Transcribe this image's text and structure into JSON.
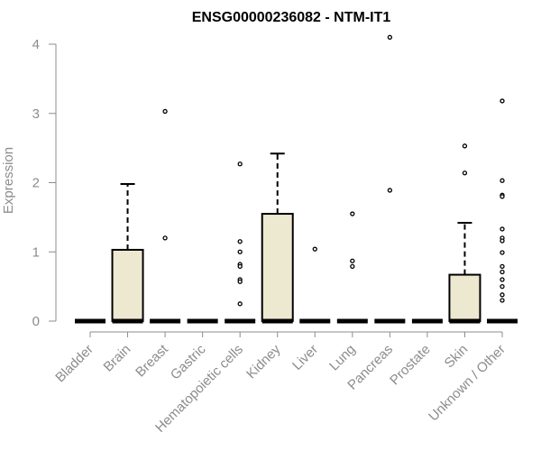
{
  "chart_data": {
    "type": "box",
    "title": "ENSG00000236082 - NTM-IT1",
    "xlabel": "",
    "ylabel": "Expression",
    "ylim": [
      0,
      4.1
    ],
    "yticks": [
      0,
      1,
      2,
      3,
      4
    ],
    "categories": [
      "Bladder",
      "Brain",
      "Breast",
      "Gastric",
      "Hematopoietic cells",
      "Kidney",
      "Liver",
      "Lung",
      "Pancreas",
      "Prostate",
      "Skin",
      "Unknown / Other"
    ],
    "boxes": [
      {
        "category": "Bladder",
        "q1": 0,
        "median": 0,
        "q3": 0,
        "whisker_low": 0,
        "whisker_high": 0,
        "outliers": []
      },
      {
        "category": "Brain",
        "q1": 0,
        "median": 0,
        "q3": 1.03,
        "whisker_low": 0,
        "whisker_high": 1.98,
        "outliers": []
      },
      {
        "category": "Breast",
        "q1": 0,
        "median": 0,
        "q3": 0,
        "whisker_low": 0,
        "whisker_high": 0,
        "outliers": [
          3.03,
          1.2
        ]
      },
      {
        "category": "Gastric",
        "q1": 0,
        "median": 0,
        "q3": 0,
        "whisker_low": 0,
        "whisker_high": 0,
        "outliers": []
      },
      {
        "category": "Hematopoietic cells",
        "q1": 0,
        "median": 0,
        "q3": 0,
        "whisker_low": 0,
        "whisker_high": 0,
        "outliers": [
          2.27,
          1.15,
          1.0,
          0.82,
          0.79,
          0.6,
          0.57,
          0.25
        ]
      },
      {
        "category": "Kidney",
        "q1": 0,
        "median": 0,
        "q3": 1.55,
        "whisker_low": 0,
        "whisker_high": 2.42,
        "outliers": []
      },
      {
        "category": "Liver",
        "q1": 0,
        "median": 0,
        "q3": 0,
        "whisker_low": 0,
        "whisker_high": 0,
        "outliers": [
          1.04
        ]
      },
      {
        "category": "Lung",
        "q1": 0,
        "median": 0,
        "q3": 0,
        "whisker_low": 0,
        "whisker_high": 0,
        "outliers": [
          1.55,
          0.87,
          0.79
        ]
      },
      {
        "category": "Pancreas",
        "q1": 0,
        "median": 0,
        "q3": 0,
        "whisker_low": 0,
        "whisker_high": 0,
        "outliers": [
          4.1,
          1.89
        ]
      },
      {
        "category": "Prostate",
        "q1": 0,
        "median": 0,
        "q3": 0,
        "whisker_low": 0,
        "whisker_high": 0,
        "outliers": []
      },
      {
        "category": "Skin",
        "q1": 0,
        "median": 0,
        "q3": 0.67,
        "whisker_low": 0,
        "whisker_high": 1.42,
        "outliers": [
          2.53,
          2.14
        ]
      },
      {
        "category": "Unknown / Other",
        "q1": 0,
        "median": 0,
        "q3": 0,
        "whisker_low": 0,
        "whisker_high": 0,
        "outliers": [
          3.18,
          2.03,
          1.82,
          1.8,
          1.33,
          1.2,
          1.16,
          0.99,
          0.79,
          0.71,
          0.6,
          0.5,
          0.38,
          0.3
        ]
      }
    ],
    "box_fill": "#ede8d0",
    "axis_color": "#8c8c8c",
    "grid": false,
    "legend": "none"
  }
}
